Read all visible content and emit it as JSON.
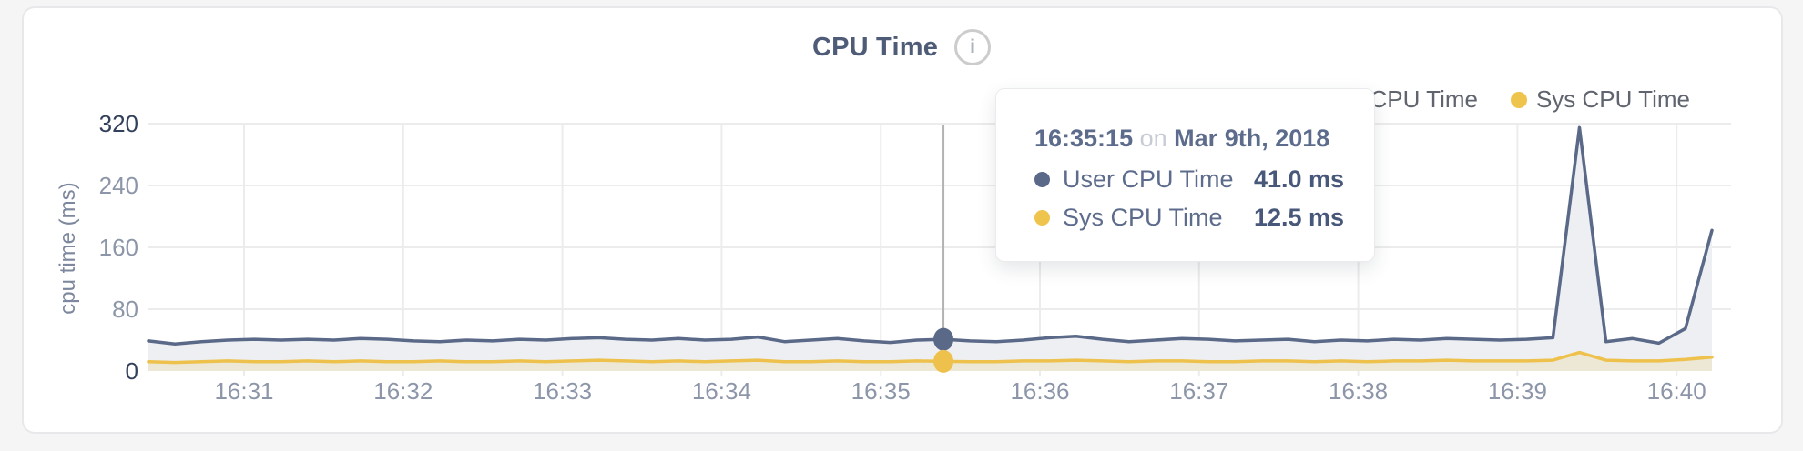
{
  "header": {
    "title": "CPU Time",
    "info_icon": "i"
  },
  "legend": [
    {
      "label": "User CPU Time",
      "color": "#5b6988"
    },
    {
      "label": "Sys CPU Time",
      "color": "#eec44d"
    }
  ],
  "tooltip": {
    "time": "16:35:15",
    "conjunction": "on",
    "date": "Mar 9th, 2018",
    "rows": [
      {
        "label": "User CPU Time",
        "value": "41.0 ms",
        "color": "#5b6988"
      },
      {
        "label": "Sys CPU Time",
        "value": "12.5 ms",
        "color": "#eec44d"
      }
    ]
  },
  "chart_data": {
    "type": "area",
    "title": "CPU Time",
    "xlabel": "",
    "ylabel": "cpu time (ms)",
    "ylim": [
      0,
      320
    ],
    "y_ticks": [
      0,
      80,
      160,
      240,
      320
    ],
    "x_ticks": [
      "16:31",
      "16:32",
      "16:33",
      "16:34",
      "16:35",
      "16:36",
      "16:37",
      "16:38",
      "16:39",
      "16:40"
    ],
    "x_range_approx": [
      "16:30:20",
      "16:40:10"
    ],
    "point_interval_seconds": 10,
    "grid": true,
    "legend_position": "top-right",
    "hover": {
      "index": 30,
      "time": "16:35:15",
      "date": "Mar 9th, 2018",
      "user_ms": 41.0,
      "sys_ms": 12.5
    },
    "series": [
      {
        "name": "User CPU Time",
        "color": "#5b6988",
        "values": [
          39,
          35,
          38,
          40,
          41,
          40,
          41,
          40,
          42,
          41,
          39,
          38,
          40,
          39,
          41,
          40,
          42,
          43,
          41,
          40,
          42,
          40,
          41,
          44,
          38,
          40,
          42,
          39,
          37,
          40,
          41,
          39,
          38,
          40,
          43,
          45,
          41,
          38,
          40,
          42,
          41,
          39,
          40,
          41,
          38,
          40,
          39,
          41,
          40,
          42,
          41,
          40,
          41,
          43,
          315,
          38,
          42,
          36,
          55,
          182
        ]
      },
      {
        "name": "Sys CPU Time",
        "color": "#edc14c",
        "values": [
          12,
          11,
          12,
          13,
          12,
          12,
          13,
          12,
          13,
          12,
          12,
          13,
          12,
          12,
          13,
          12,
          13,
          14,
          13,
          12,
          13,
          12,
          13,
          14,
          12,
          12,
          13,
          12,
          12,
          13,
          12.5,
          12,
          12,
          13,
          13,
          14,
          13,
          12,
          13,
          13,
          12,
          12,
          13,
          13,
          12,
          13,
          12,
          13,
          13,
          14,
          13,
          13,
          13,
          14,
          24,
          14,
          13,
          13,
          15,
          18
        ]
      }
    ]
  }
}
